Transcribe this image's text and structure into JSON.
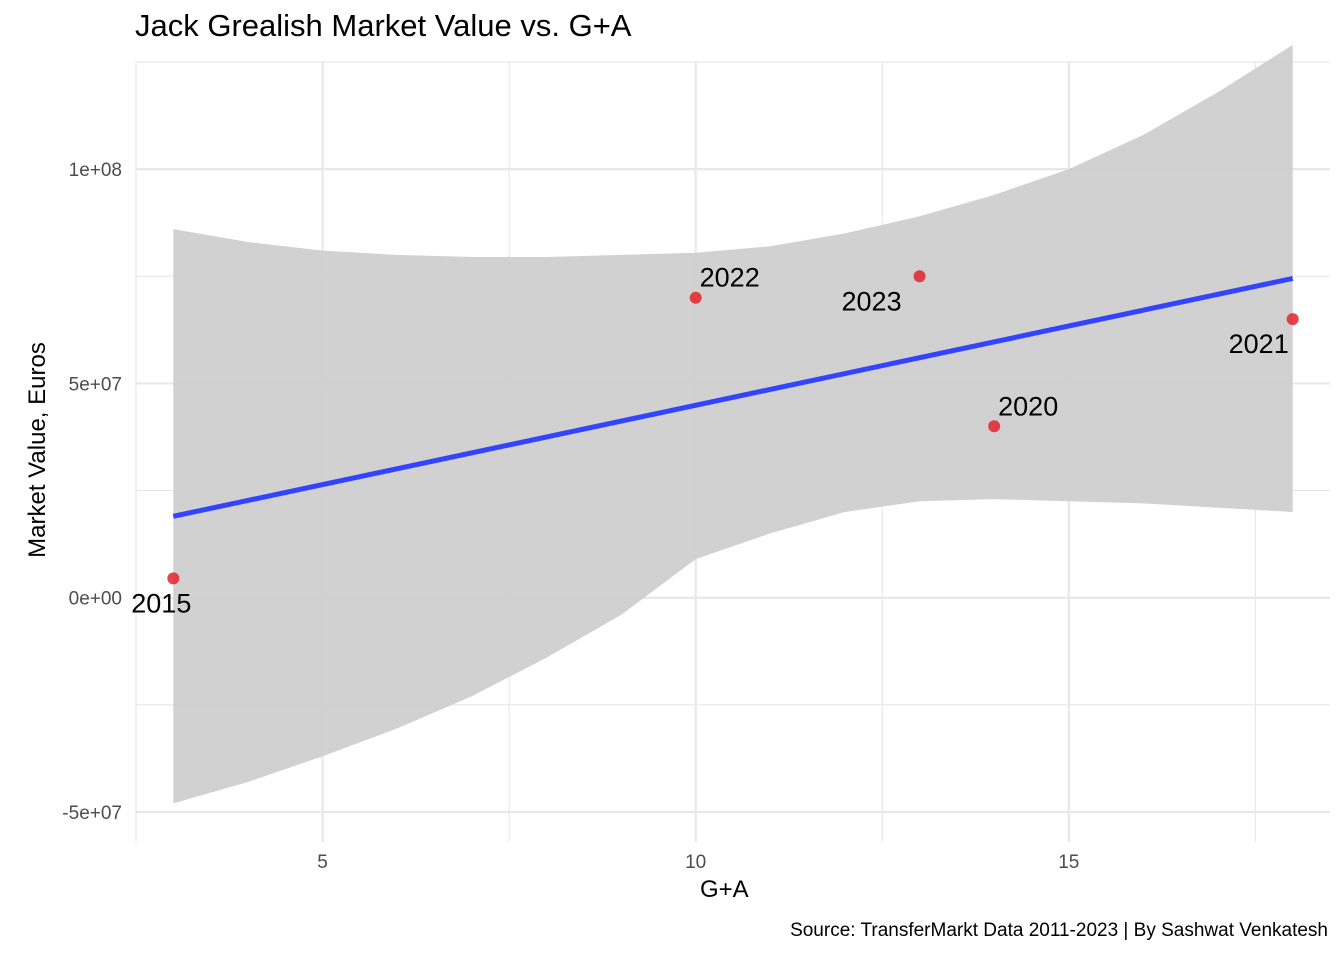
{
  "chart_data": {
    "type": "scatter",
    "title": "Jack Grealish Market Value vs. G+A",
    "xlabel": "G+A",
    "ylabel": "Market Value, Euros",
    "caption": "Source: TransferMarkt Data 2011-2023 | By Sashwat Venkatesh",
    "xlim": [
      2.5,
      18.5
    ],
    "ylim": [
      -57000000,
      125000000
    ],
    "x_ticks": [
      5,
      10,
      15
    ],
    "x_tick_labels": [
      "5",
      "10",
      "15"
    ],
    "y_ticks": [
      -50000000,
      0,
      50000000,
      100000000
    ],
    "y_tick_labels": [
      "-5e+07",
      "0e+00",
      "5e+07",
      "1e+08"
    ],
    "grid": true,
    "points": [
      {
        "label": "2015",
        "x": 3,
        "y": 4500000
      },
      {
        "label": "2022",
        "x": 10,
        "y": 70000000
      },
      {
        "label": "2023",
        "x": 13,
        "y": 75000000
      },
      {
        "label": "2020",
        "x": 14,
        "y": 40000000
      },
      {
        "label": "2021",
        "x": 18,
        "y": 65000000
      }
    ],
    "trend_line": {
      "type": "linear",
      "x": [
        3,
        18
      ],
      "y": [
        19000000,
        74500000
      ]
    },
    "confidence_band": {
      "x": [
        3,
        4,
        5,
        6,
        7,
        8,
        9,
        10,
        11,
        12,
        13,
        14,
        15,
        16,
        17,
        18
      ],
      "upper": [
        86000000,
        83000000,
        81000000,
        80000000,
        79500000,
        79500000,
        80000000,
        80500000,
        82000000,
        85000000,
        89000000,
        94000000,
        100000000,
        108000000,
        118000000,
        129000000
      ],
      "lower": [
        -48000000,
        -43000000,
        -37000000,
        -30500000,
        -23000000,
        -14000000,
        -4000000,
        9000000,
        15000000,
        20000000,
        22500000,
        23000000,
        22500000,
        22000000,
        21000000,
        20000000
      ]
    },
    "colors": {
      "point": "#e3242b",
      "trend_line": "#3344ff",
      "confidence_band": "#cfcfcf",
      "grid": "#e8e8e8"
    }
  }
}
